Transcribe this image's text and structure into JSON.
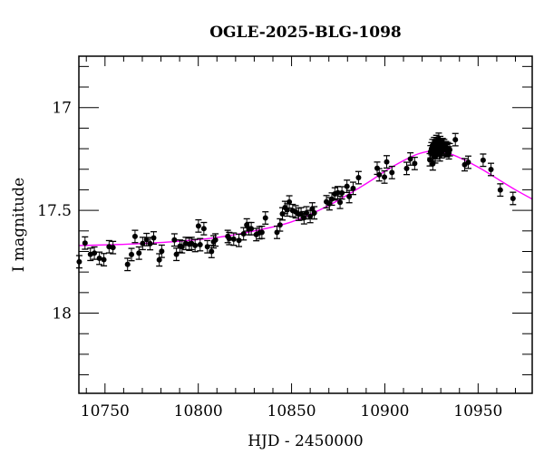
{
  "chart_data": {
    "type": "scatter",
    "title": "OGLE-2025-BLG-1098",
    "xlabel": "HJD - 2450000",
    "ylabel": "I magnitude",
    "xlim": [
      10736,
      10979
    ],
    "ylim": [
      18.39,
      16.75
    ],
    "y_inverted": true,
    "x_ticks": [
      10750,
      10800,
      10850,
      10900,
      10950
    ],
    "x_tick_labels": [
      "10750",
      "10800",
      "10850",
      "10900",
      "10950"
    ],
    "y_ticks": [
      17,
      17.5,
      18
    ],
    "y_tick_labels": [
      "17",
      "17.5",
      "18"
    ],
    "x_minor_step": 10,
    "y_minor_step": 0.1,
    "grid": false,
    "colors": {
      "points": "#000000",
      "errorbars": "#000000",
      "model": "#ff00ff"
    },
    "yerr": 0.03,
    "series": [
      {
        "kind": "data",
        "x": [
          10736.2,
          10739.3,
          10742.2,
          10744.3,
          10747.0,
          10749.4,
          10752.2,
          10754.3,
          10762.1,
          10764.2,
          10766.1,
          10768.2,
          10770.2,
          10772.3,
          10774.2,
          10776.1,
          10779.1,
          10780.4,
          10787.2,
          10788.3,
          10790.2,
          10791.3,
          10793.3,
          10795.2,
          10796.4,
          10798.3,
          10800.1,
          10801.0,
          10803.0,
          10804.9,
          10807.1,
          10808.2,
          10809.2,
          10815.8,
          10816.6,
          10819.0,
          10821.8,
          10824.3,
          10826.0,
          10827.1,
          10828.4,
          10831.1,
          10832.8,
          10834.1,
          10836.0,
          10842.2,
          10843.8,
          10845.1,
          10846.5,
          10847.7,
          10848.8,
          10850.6,
          10852.2,
          10853.8,
          10855.1,
          10856.7,
          10858.0,
          10860.0,
          10861.1,
          10862.2,
          10868.7,
          10870.3,
          10871.6,
          10873.2,
          10874.8,
          10876.0,
          10877.0,
          10879.7,
          10880.9,
          10883.0,
          10885.9,
          10895.9,
          10897.0,
          10899.8,
          10901.0,
          10903.8,
          10911.7,
          10913.7,
          10916.0,
          10924.1,
          10925.7,
          10924.5,
          10925.0,
          10925.5,
          10926.0,
          10926.4,
          10926.8,
          10927.2,
          10927.6,
          10928.0,
          10928.4,
          10928.9,
          10929.3,
          10929.7,
          10930.1,
          10930.5,
          10931.0,
          10931.4,
          10931.8,
          10932.3,
          10932.8,
          10933.3,
          10933.8,
          10934.3,
          10934.8,
          10927.0,
          10929.5,
          10937.8,
          10942.8,
          10944.7,
          10952.7,
          10956.9,
          10961.9,
          10968.7
        ],
        "y": [
          17.75,
          17.659,
          17.714,
          17.708,
          17.733,
          17.74,
          17.677,
          17.681,
          17.763,
          17.715,
          17.627,
          17.708,
          17.661,
          17.642,
          17.662,
          17.634,
          17.741,
          17.699,
          17.644,
          17.714,
          17.674,
          17.677,
          17.661,
          17.665,
          17.661,
          17.671,
          17.576,
          17.667,
          17.589,
          17.677,
          17.7,
          17.653,
          17.644,
          17.627,
          17.637,
          17.64,
          17.646,
          17.614,
          17.571,
          17.589,
          17.589,
          17.618,
          17.609,
          17.607,
          17.537,
          17.607,
          17.571,
          17.517,
          17.486,
          17.498,
          17.459,
          17.501,
          17.507,
          17.519,
          17.517,
          17.536,
          17.512,
          17.53,
          17.493,
          17.512,
          17.458,
          17.468,
          17.445,
          17.42,
          17.414,
          17.461,
          17.415,
          17.383,
          17.433,
          17.393,
          17.341,
          17.295,
          17.327,
          17.338,
          17.264,
          17.316,
          17.296,
          17.25,
          17.272,
          17.254,
          17.274,
          17.215,
          17.2,
          17.185,
          17.23,
          17.175,
          17.21,
          17.19,
          17.165,
          17.22,
          17.18,
          17.154,
          17.2,
          17.17,
          17.19,
          17.215,
          17.18,
          17.2,
          17.185,
          17.205,
          17.195,
          17.21,
          17.2,
          17.22,
          17.205,
          17.24,
          17.23,
          17.156,
          17.278,
          17.266,
          17.256,
          17.301,
          17.401,
          17.442
        ]
      },
      {
        "kind": "model",
        "x": [
          10730,
          10750,
          10770,
          10790,
          10810,
          10830,
          10850,
          10870,
          10890,
          10900,
          10910,
          10918,
          10926,
          10934,
          10942,
          10952,
          10962,
          10970,
          10980
        ],
        "y": [
          17.672,
          17.668,
          17.661,
          17.65,
          17.632,
          17.6,
          17.556,
          17.476,
          17.37,
          17.31,
          17.258,
          17.225,
          17.211,
          17.222,
          17.252,
          17.3,
          17.356,
          17.4,
          17.45
        ]
      }
    ]
  }
}
